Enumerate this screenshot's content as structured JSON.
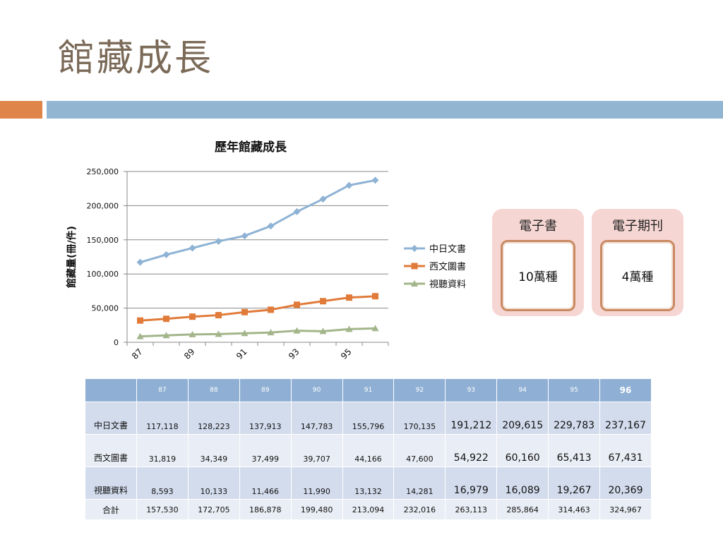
{
  "slide": {
    "title": "館藏成長",
    "colors": {
      "accent_orange": "#e0854a",
      "accent_blue": "#92b5d2"
    }
  },
  "chart_data": {
    "type": "line",
    "title": "歷年館藏成長",
    "ylabel": "館藏量(冊/件)",
    "xlabel": "",
    "x": [
      "87",
      "88",
      "89",
      "90",
      "91",
      "92",
      "93",
      "94",
      "95",
      "96"
    ],
    "x_tick_labels": [
      "87",
      "89",
      "91",
      "93",
      "95"
    ],
    "ylim": [
      0,
      250000
    ],
    "y_ticks": [
      "0",
      "50,000",
      "100,000",
      "150,000",
      "200,000",
      "250,000"
    ],
    "grid": true,
    "legend": "right",
    "series": [
      {
        "name": "中日文書",
        "color": "#8fb3d5",
        "marker": "diamond",
        "values": [
          117118,
          128223,
          137913,
          147783,
          155796,
          170135,
          191212,
          209615,
          229783,
          237167
        ]
      },
      {
        "name": "西文圖書",
        "color": "#e07b3a",
        "marker": "square",
        "values": [
          31819,
          34349,
          37499,
          39707,
          44166,
          47600,
          54922,
          60160,
          65413,
          67431
        ]
      },
      {
        "name": "視聽資料",
        "color": "#a3b58a",
        "marker": "triangle",
        "values": [
          8593,
          10133,
          11466,
          11990,
          13132,
          14281,
          16979,
          16089,
          19267,
          20369
        ]
      }
    ]
  },
  "cards": [
    {
      "title": "電子書",
      "value": "10萬種"
    },
    {
      "title": "電子期刊",
      "value": "4萬種"
    }
  ],
  "table": {
    "header": [
      "",
      "87",
      "88",
      "89",
      "90",
      "91",
      "92",
      "93",
      "94",
      "95",
      "96"
    ],
    "rows": [
      {
        "label": "中日文書",
        "cells": [
          "117,118",
          "128,223",
          "137,913",
          "147,783",
          "155,796",
          "170,135",
          "191,212",
          "209,615",
          "229,783",
          "237,167"
        ]
      },
      {
        "label": "西文圖書",
        "cells": [
          "31,819",
          "34,349",
          "37,499",
          "39,707",
          "44,166",
          "47,600",
          "54,922",
          "60,160",
          "65,413",
          "67,431"
        ]
      },
      {
        "label": "視聽資料",
        "cells": [
          "8,593",
          "10,133",
          "11,466",
          "11,990",
          "13,132",
          "14,281",
          "16,979",
          "16,089",
          "19,267",
          "20,369"
        ]
      },
      {
        "label": "合計",
        "cells": [
          "157,530",
          "172,705",
          "186,878",
          "199,480",
          "213,094",
          "232,016",
          "263,113",
          "285,864",
          "314,463",
          "324,967"
        ]
      }
    ]
  }
}
